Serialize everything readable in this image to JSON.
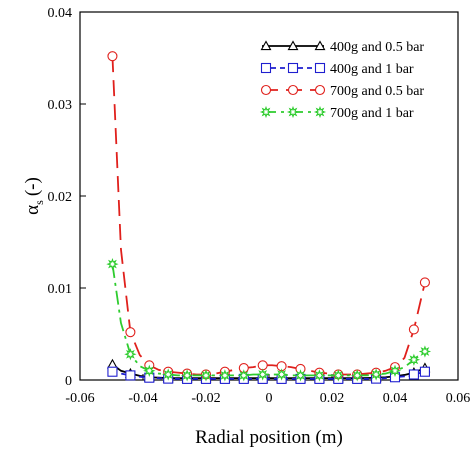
{
  "chart_data": {
    "type": "line",
    "title": "",
    "xlabel": "Radial position (m)",
    "ylabel_main": "α",
    "ylabel_sub": "s",
    "ylabel_unit": "(-)",
    "xlim": [
      -0.06,
      0.06
    ],
    "ylim": [
      0,
      0.04
    ],
    "xticks": [
      -0.06,
      -0.04,
      -0.02,
      0,
      0.02,
      0.04,
      0.06
    ],
    "yticks": [
      0,
      0.01,
      0.02,
      0.03,
      0.04
    ],
    "xtick_labels": [
      "-0.06",
      "-0.04",
      "-0.02",
      "0",
      "0.02",
      "0.04",
      "0.06"
    ],
    "ytick_labels": [
      "0",
      "0.01",
      "0.02",
      "0.03",
      "0.04"
    ],
    "grid": false,
    "legend_position": "top-right",
    "series": [
      {
        "name": "400g and 0.5 bar",
        "color": "#000000",
        "marker": "triangle",
        "dash": "solid",
        "x": [
          -0.0497,
          -0.047,
          -0.044,
          -0.041,
          -0.038,
          -0.035,
          -0.032,
          -0.029,
          -0.026,
          -0.023,
          -0.02,
          -0.017,
          -0.014,
          -0.011,
          -0.008,
          -0.005,
          -0.002,
          0.001,
          0.004,
          0.007,
          0.01,
          0.013,
          0.016,
          0.019,
          0.022,
          0.025,
          0.028,
          0.031,
          0.034,
          0.037,
          0.04,
          0.043,
          0.046,
          0.0495
        ],
        "y": [
          0.0017,
          0.001,
          0.0007,
          0.00045,
          0.0003,
          0.00025,
          0.0002,
          0.0002,
          0.0002,
          0.0002,
          0.0002,
          0.0002,
          0.0002,
          0.0002,
          0.0002,
          0.0002,
          0.0002,
          0.0002,
          0.0002,
          0.0002,
          0.0002,
          0.0002,
          0.0002,
          0.0002,
          0.0002,
          0.0002,
          0.0002,
          0.00022,
          0.00025,
          0.0003,
          0.0004,
          0.00055,
          0.0008,
          0.0013
        ]
      },
      {
        "name": "400g and 1 bar",
        "color": "#1f1fcf",
        "marker": "square",
        "dash": "dashed",
        "x": [
          -0.0497,
          -0.047,
          -0.044,
          -0.041,
          -0.038,
          -0.035,
          -0.032,
          -0.029,
          -0.026,
          -0.023,
          -0.02,
          -0.017,
          -0.014,
          -0.011,
          -0.008,
          -0.005,
          -0.002,
          0.001,
          0.004,
          0.007,
          0.01,
          0.013,
          0.016,
          0.019,
          0.022,
          0.025,
          0.028,
          0.031,
          0.034,
          0.037,
          0.04,
          0.043,
          0.046,
          0.0495
        ],
        "y": [
          0.0009,
          0.0007,
          0.0005,
          0.00035,
          0.00025,
          0.0002,
          0.00015,
          0.00012,
          0.00012,
          0.00012,
          0.00012,
          0.00012,
          0.00012,
          0.00012,
          0.00012,
          0.00012,
          0.00012,
          0.00012,
          0.00012,
          0.00012,
          0.00012,
          0.00012,
          0.00012,
          0.00012,
          0.00012,
          0.00012,
          0.00012,
          0.00012,
          0.00015,
          0.0002,
          0.0003,
          0.0004,
          0.0006,
          0.0009
        ]
      },
      {
        "name": "700g and 0.5 bar",
        "color": "#e0201c",
        "marker": "circle",
        "dash": "longdash",
        "x": [
          -0.0497,
          -0.047,
          -0.044,
          -0.041,
          -0.038,
          -0.035,
          -0.032,
          -0.029,
          -0.026,
          -0.023,
          -0.02,
          -0.017,
          -0.014,
          -0.011,
          -0.008,
          -0.005,
          -0.002,
          0.001,
          0.004,
          0.007,
          0.01,
          0.013,
          0.016,
          0.019,
          0.022,
          0.025,
          0.028,
          0.031,
          0.034,
          0.037,
          0.04,
          0.043,
          0.046,
          0.0495
        ],
        "y": [
          0.0352,
          0.0142,
          0.0052,
          0.0027,
          0.0016,
          0.0011,
          0.0009,
          0.0008,
          0.0007,
          0.0006,
          0.0006,
          0.0007,
          0.0009,
          0.0011,
          0.0013,
          0.0014,
          0.0016,
          0.0016,
          0.0015,
          0.0014,
          0.0012,
          0.001,
          0.0008,
          0.0007,
          0.0006,
          0.0006,
          0.0006,
          0.0007,
          0.0008,
          0.001,
          0.0014,
          0.0024,
          0.0055,
          0.0106
        ]
      },
      {
        "name": "700g and 1 bar",
        "color": "#2ecc2e",
        "marker": "star",
        "dash": "dashdot",
        "x": [
          -0.0497,
          -0.047,
          -0.044,
          -0.041,
          -0.038,
          -0.035,
          -0.032,
          -0.029,
          -0.026,
          -0.023,
          -0.02,
          -0.017,
          -0.014,
          -0.011,
          -0.008,
          -0.005,
          -0.002,
          0.001,
          0.004,
          0.007,
          0.01,
          0.013,
          0.016,
          0.019,
          0.022,
          0.025,
          0.028,
          0.031,
          0.034,
          0.037,
          0.04,
          0.043,
          0.046,
          0.0495
        ],
        "y": [
          0.0126,
          0.0062,
          0.0028,
          0.0015,
          0.001,
          0.0007,
          0.0006,
          0.0005,
          0.0005,
          0.0005,
          0.0005,
          0.0005,
          0.0005,
          0.0005,
          0.0005,
          0.0006,
          0.0006,
          0.0006,
          0.0006,
          0.0005,
          0.0005,
          0.0005,
          0.0005,
          0.0005,
          0.0005,
          0.0005,
          0.0005,
          0.0005,
          0.0006,
          0.0007,
          0.001,
          0.0014,
          0.0022,
          0.0031
        ]
      }
    ]
  }
}
